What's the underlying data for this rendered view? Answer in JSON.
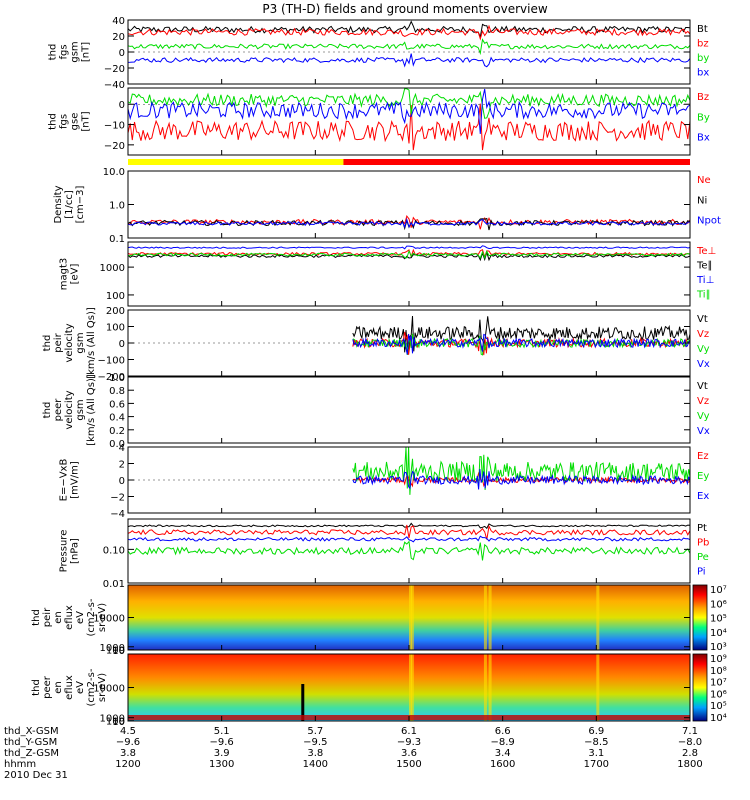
{
  "title": "P3 (TH-D) fields and ground moments overview",
  "colors": {
    "black": "#000000",
    "red": "#ff0000",
    "green": "#00dd00",
    "blue": "#0000ff",
    "yellow": "#ffff00"
  },
  "chart_data": [
    {
      "id": "fgs_gsm",
      "type": "line",
      "ylabel_lines": [
        "thd",
        "fgs",
        "gsm",
        "[nT]"
      ],
      "ylim": [
        -40,
        40
      ],
      "ticks": [
        40,
        20,
        0,
        -20,
        -40
      ],
      "tick_labels": [
        "40",
        "20",
        "0",
        "−20",
        "−40"
      ],
      "series": [
        {
          "name": "Bt",
          "color": "black",
          "level": 28,
          "noise": 4
        },
        {
          "name": "bz",
          "color": "red",
          "level": 25,
          "noise": 4
        },
        {
          "name": "by",
          "color": "green",
          "level": 7,
          "noise": 3
        },
        {
          "name": "bx",
          "color": "blue",
          "level": -10,
          "noise": 3
        }
      ]
    },
    {
      "id": "fgs_gse",
      "type": "line",
      "ylabel_lines": [
        "thd",
        "fgs",
        "gse",
        "[nT]"
      ],
      "ylim": [
        -25,
        8
      ],
      "ticks": [
        0,
        -10,
        -20
      ],
      "tick_labels": [
        "0",
        "−10",
        "−20"
      ],
      "series": [
        {
          "name": "Bz",
          "color": "red",
          "level": -13,
          "noise": 5
        },
        {
          "name": "By",
          "color": "green",
          "level": 2,
          "noise": 3
        },
        {
          "name": "Bx",
          "color": "blue",
          "level": -3,
          "noise": 4
        }
      ]
    },
    {
      "id": "density",
      "type": "line",
      "log": true,
      "ylabel_lines": [
        "Density",
        "[1/cc]",
        "[cm−3]"
      ],
      "ylim": [
        0.1,
        10
      ],
      "ticks": [
        10,
        1,
        0.1
      ],
      "tick_labels": [
        "10.0",
        "1.0",
        "0.1"
      ],
      "series": [
        {
          "name": "Ne",
          "color": "red",
          "level": 0.3,
          "noise": 0.15
        },
        {
          "name": "Ni",
          "color": "black",
          "level": 0.28,
          "noise": 0.15
        },
        {
          "name": "Npot",
          "color": "blue",
          "level": 0.27,
          "noise": 0.1
        }
      ]
    },
    {
      "id": "temperature",
      "type": "line",
      "log": true,
      "ylabel_lines": [
        "magt3",
        "[eV]"
      ],
      "ylim": [
        40,
        8000
      ],
      "ticks": [
        1000,
        100
      ],
      "tick_labels": [
        "1000",
        "100"
      ],
      "series": [
        {
          "name": "Te⊥",
          "color": "red",
          "level": 3000,
          "noise": 0.1
        },
        {
          "name": "Te∥",
          "color": "black",
          "level": 2500,
          "noise": 0.1
        },
        {
          "name": "Ti⊥",
          "color": "blue",
          "level": 5000,
          "noise": 0.05
        },
        {
          "name": "Ti∥",
          "color": "green",
          "level": 2800,
          "noise": 0.1
        }
      ]
    },
    {
      "id": "peir_velocity",
      "type": "line",
      "ylabel_lines": [
        "thd",
        "peir",
        "velocity",
        "gsm",
        "[km/s (All Qs)]"
      ],
      "ylim": [
        -200,
        200
      ],
      "ticks": [
        200,
        100,
        0,
        -100,
        -200
      ],
      "tick_labels": [
        "200",
        "100",
        "0",
        "−100",
        "−200"
      ],
      "start_x": 1440,
      "series": [
        {
          "name": "Vt",
          "color": "black",
          "level": 60,
          "noise": 40
        },
        {
          "name": "Vz",
          "color": "red",
          "level": 0,
          "noise": 25
        },
        {
          "name": "Vy",
          "color": "green",
          "level": 0,
          "noise": 25
        },
        {
          "name": "Vx",
          "color": "blue",
          "level": 0,
          "noise": 25
        }
      ]
    },
    {
      "id": "peer_velocity",
      "type": "line",
      "ylabel_lines": [
        "thd",
        "peer",
        "velocity",
        "gsm",
        "[km/s (All Qs)]"
      ],
      "ylim": [
        0,
        1
      ],
      "ticks": [
        1,
        0.8,
        0.6,
        0.4,
        0.2,
        0
      ],
      "tick_labels": [
        "1.0",
        "0.8",
        "0.6",
        "0.4",
        "0.2",
        "0.0"
      ],
      "series": [
        {
          "name": "Vt",
          "color": "black"
        },
        {
          "name": "Vz",
          "color": "red"
        },
        {
          "name": "Vy",
          "color": "green"
        },
        {
          "name": "Vx",
          "color": "blue"
        }
      ]
    },
    {
      "id": "efield",
      "type": "line",
      "ylabel_lines": [
        "E=−VxB",
        "[mV/m]"
      ],
      "ylim": [
        -4,
        4
      ],
      "ticks": [
        4,
        2,
        0,
        -2,
        -4
      ],
      "tick_labels": [
        "4",
        "2",
        "0",
        "−2",
        "−4"
      ],
      "start_x": 1440,
      "series": [
        {
          "name": "Ez",
          "color": "red",
          "level": 0,
          "noise": 0.3
        },
        {
          "name": "Ey",
          "color": "green",
          "level": 1,
          "noise": 1.2
        },
        {
          "name": "Ex",
          "color": "blue",
          "level": 0,
          "noise": 0.5
        }
      ]
    },
    {
      "id": "pressure",
      "type": "line",
      "log": true,
      "ylabel_lines": [
        "Pressure",
        "[nPa]"
      ],
      "ylim": [
        0.01,
        0.8
      ],
      "ticks": [
        0.1,
        0.01
      ],
      "tick_labels": [
        "0.10",
        "0.01"
      ],
      "series": [
        {
          "name": "Pt",
          "color": "black",
          "level": 0.5,
          "noise": 0.05
        },
        {
          "name": "Pb",
          "color": "red",
          "level": 0.32,
          "noise": 0.15
        },
        {
          "name": "Pe",
          "color": "green",
          "level": 0.09,
          "noise": 0.2
        },
        {
          "name": "Pi",
          "color": "blue",
          "level": 0.2,
          "noise": 0.1
        }
      ]
    },
    {
      "id": "peir_eflux",
      "type": "heatmap",
      "ylabel_lines": [
        "thd",
        "peir",
        "en",
        "eflux",
        "eV",
        "(cm2-s-",
        "sr-eV)"
      ],
      "ylim": [
        8,
        20000
      ],
      "ticks": [
        10000,
        1000,
        100,
        10
      ],
      "tick_labels": [
        "10000",
        "1000",
        "100",
        "10"
      ],
      "colorbar": {
        "labels": [
          "10⁷",
          "10⁶",
          "10⁵",
          "10⁴",
          "10³"
        ]
      }
    },
    {
      "id": "peer_eflux",
      "type": "heatmap",
      "ylabel_lines": [
        "thd",
        "peer",
        "en",
        "eflux",
        "eV",
        "(cm2-s-",
        "sr-eV)"
      ],
      "ylim": [
        8,
        20000
      ],
      "ticks": [
        10000,
        1000,
        100,
        10
      ],
      "tick_labels": [
        "10000",
        "1000",
        "100",
        "10"
      ],
      "colorbar": {
        "labels": [
          "10⁹",
          "10⁸",
          "10⁷",
          "10⁶",
          "10⁵",
          "10⁴"
        ]
      }
    }
  ],
  "time_axis": {
    "x_range": [
      1200,
      1800
    ],
    "label_rows": [
      {
        "name": "thd_X-GSM",
        "values": [
          "4.5",
          "5.1",
          "5.7",
          "6.1",
          "6.6",
          "6.9",
          "7.1"
        ]
      },
      {
        "name": "thd_Y-GSM",
        "values": [
          "−9.6",
          "−9.6",
          "−9.5",
          "−9.3",
          "−8.9",
          "−8.5",
          "−8.0"
        ]
      },
      {
        "name": "thd_Z-GSM",
        "values": [
          "3.8",
          "3.9",
          "3.8",
          "3.6",
          "3.4",
          "3.1",
          "2.8"
        ]
      },
      {
        "name": "hhmm",
        "values": [
          "1200",
          "1300",
          "1400",
          "1500",
          "1600",
          "1700",
          "1800"
        ]
      }
    ],
    "date": "2010 Dec 31"
  },
  "status_bar": [
    {
      "from": 1200,
      "to": 1430,
      "color": "yellow"
    },
    {
      "from": 1430,
      "to": 1800,
      "color": "red"
    }
  ]
}
